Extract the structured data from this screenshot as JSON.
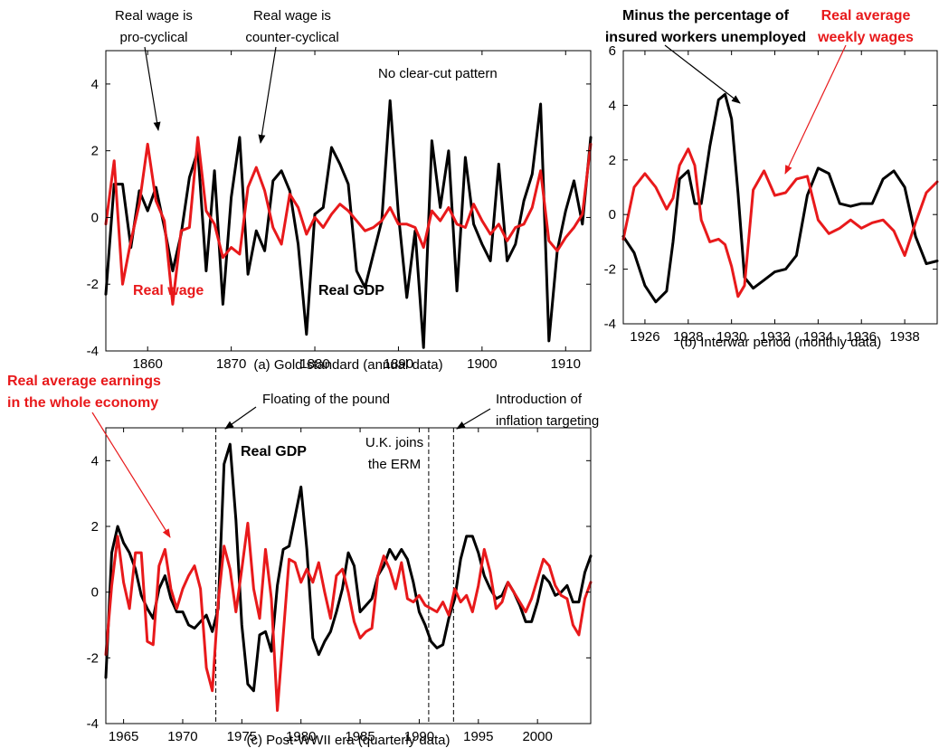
{
  "colors": {
    "real_gdp": "#000000",
    "wage": "#e8191b"
  },
  "chart_data": [
    {
      "type": "line",
      "caption": "(a) Gold standard (annual data)",
      "xlim": [
        1855,
        1913
      ],
      "ylim": [
        -4,
        5
      ],
      "xticks": [
        1860,
        1870,
        1880,
        1890,
        1900,
        1910
      ],
      "yticks": [
        -4,
        -2,
        0,
        2,
        4
      ],
      "grid": false,
      "x": [
        1855,
        1856,
        1857,
        1858,
        1859,
        1860,
        1861,
        1862,
        1863,
        1864,
        1865,
        1866,
        1867,
        1868,
        1869,
        1870,
        1871,
        1872,
        1873,
        1874,
        1875,
        1876,
        1877,
        1878,
        1879,
        1880,
        1881,
        1882,
        1883,
        1884,
        1885,
        1886,
        1887,
        1888,
        1889,
        1890,
        1891,
        1892,
        1893,
        1894,
        1895,
        1896,
        1897,
        1898,
        1899,
        1900,
        1901,
        1902,
        1903,
        1904,
        1905,
        1906,
        1907,
        1908,
        1909,
        1910,
        1911,
        1912,
        1913
      ],
      "series": [
        {
          "name": "Real GDP",
          "color": "#000000",
          "values": [
            -2.3,
            1.0,
            1.0,
            -0.9,
            0.8,
            0.2,
            0.9,
            -0.3,
            -1.6,
            -0.5,
            1.2,
            2.0,
            -1.6,
            1.4,
            -2.6,
            0.6,
            2.4,
            -1.7,
            -0.4,
            -1.0,
            1.1,
            1.4,
            0.8,
            -0.8,
            -3.5,
            0.1,
            0.3,
            2.1,
            1.6,
            1.0,
            -1.6,
            -2.1,
            -1.1,
            -0.1,
            3.5,
            0.1,
            -2.4,
            -0.4,
            -3.9,
            2.3,
            0.3,
            2.0,
            -2.2,
            1.8,
            -0.2,
            -0.8,
            -1.3,
            1.6,
            -1.3,
            -0.8,
            0.5,
            1.3,
            3.4,
            -3.7,
            -1.0,
            0.2,
            1.1,
            -0.2,
            2.4
          ]
        },
        {
          "name": "Real wage",
          "color": "#e8191b",
          "values": [
            -0.2,
            1.7,
            -2.0,
            -0.7,
            0.4,
            2.2,
            0.5,
            -0.1,
            -2.6,
            -0.4,
            -0.3,
            2.4,
            0.2,
            -0.2,
            -1.2,
            -0.9,
            -1.1,
            0.9,
            1.5,
            0.8,
            -0.3,
            -0.8,
            0.7,
            0.3,
            -0.5,
            0.0,
            -0.3,
            0.1,
            0.4,
            0.2,
            -0.1,
            -0.4,
            -0.3,
            -0.1,
            0.3,
            -0.2,
            -0.2,
            -0.3,
            -0.9,
            0.2,
            -0.1,
            0.3,
            -0.2,
            -0.3,
            0.4,
            -0.1,
            -0.5,
            -0.2,
            -0.7,
            -0.3,
            -0.2,
            0.3,
            1.4,
            -0.7,
            -1.0,
            -0.6,
            -0.3,
            0.1,
            2.2
          ]
        }
      ],
      "annotations": [
        "Real wage is",
        "pro-cyclical",
        "Real wage is",
        "counter-cyclical",
        "No clear-cut pattern",
        "Real wage",
        "Real GDP"
      ]
    },
    {
      "type": "line",
      "caption": "(b) Interwar period (monthly data)",
      "xlim": [
        1925.0,
        1939.5
      ],
      "ylim": [
        -4,
        6
      ],
      "xticks": [
        1926,
        1928,
        1930,
        1932,
        1934,
        1936,
        1938
      ],
      "yticks": [
        -4,
        -2,
        0,
        2,
        4,
        6
      ],
      "grid": false,
      "x": [
        1925.0,
        1925.5,
        1926.0,
        1926.5,
        1927.0,
        1927.3,
        1927.6,
        1928.0,
        1928.3,
        1928.6,
        1929.0,
        1929.4,
        1929.7,
        1930.0,
        1930.3,
        1930.6,
        1931.0,
        1931.5,
        1932.0,
        1932.5,
        1933.0,
        1933.5,
        1934.0,
        1934.5,
        1935.0,
        1935.5,
        1936.0,
        1936.5,
        1937.0,
        1937.5,
        1938.0,
        1938.5,
        1939.0,
        1939.5
      ],
      "series": [
        {
          "name": "Minus the percentage of insured workers unemployed",
          "color": "#000000",
          "values": [
            -0.8,
            -1.4,
            -2.6,
            -3.2,
            -2.8,
            -1.0,
            1.3,
            1.6,
            0.4,
            0.4,
            2.5,
            4.2,
            4.4,
            3.5,
            0.8,
            -2.3,
            -2.7,
            -2.4,
            -2.1,
            -2.0,
            -1.5,
            0.7,
            1.7,
            1.5,
            0.4,
            0.3,
            0.4,
            0.4,
            1.3,
            1.6,
            1.0,
            -0.8,
            -1.8,
            -1.7
          ]
        },
        {
          "name": "Real average weekly wages",
          "color": "#e8191b",
          "values": [
            -0.9,
            1.0,
            1.5,
            1.0,
            0.2,
            0.6,
            1.8,
            2.4,
            1.8,
            -0.2,
            -1.0,
            -0.9,
            -1.1,
            -1.9,
            -3.0,
            -2.6,
            0.9,
            1.6,
            0.7,
            0.8,
            1.3,
            1.4,
            -0.2,
            -0.7,
            -0.5,
            -0.2,
            -0.5,
            -0.3,
            -0.2,
            -0.6,
            -1.5,
            -0.3,
            0.8,
            1.2
          ]
        }
      ],
      "annotations": [
        "Minus the percentage of",
        "insured workers unemployed",
        "Real average",
        "weekly wages"
      ]
    },
    {
      "type": "line",
      "caption": "(c) Post-WWII era (quarterly data)",
      "xlim": [
        1963.5,
        2004.5
      ],
      "ylim": [
        -4,
        5
      ],
      "xticks": [
        1965,
        1970,
        1975,
        1980,
        1985,
        1990,
        1995,
        2000
      ],
      "yticks": [
        -4,
        -2,
        0,
        2,
        4
      ],
      "grid": false,
      "x": [
        1963.5,
        1964.0,
        1964.5,
        1965.0,
        1965.5,
        1966.0,
        1966.5,
        1967.0,
        1967.5,
        1968.0,
        1968.5,
        1969.0,
        1969.5,
        1970.0,
        1970.5,
        1971.0,
        1971.5,
        1972.0,
        1972.5,
        1973.0,
        1973.5,
        1974.0,
        1974.5,
        1975.0,
        1975.5,
        1976.0,
        1976.5,
        1977.0,
        1977.5,
        1978.0,
        1978.5,
        1979.0,
        1979.5,
        1980.0,
        1980.5,
        1981.0,
        1981.5,
        1982.0,
        1982.5,
        1983.0,
        1983.5,
        1984.0,
        1984.5,
        1985.0,
        1985.5,
        1986.0,
        1986.5,
        1987.0,
        1987.5,
        1988.0,
        1988.5,
        1989.0,
        1989.5,
        1990.0,
        1990.5,
        1991.0,
        1991.5,
        1992.0,
        1992.5,
        1993.0,
        1993.5,
        1994.0,
        1994.5,
        1995.0,
        1995.5,
        1996.0,
        1996.5,
        1997.0,
        1997.5,
        1998.0,
        1998.5,
        1999.0,
        1999.5,
        2000.0,
        2000.5,
        2001.0,
        2001.5,
        2002.0,
        2002.5,
        2003.0,
        2003.5,
        2004.0,
        2004.5
      ],
      "series": [
        {
          "name": "Real GDP",
          "color": "#000000",
          "values": [
            -2.6,
            1.2,
            2.0,
            1.5,
            1.2,
            0.7,
            -0.1,
            -0.5,
            -0.8,
            0.1,
            0.5,
            -0.2,
            -0.6,
            -0.6,
            -1.0,
            -1.1,
            -0.9,
            -0.7,
            -1.2,
            -0.5,
            3.9,
            4.5,
            2.2,
            -1.0,
            -2.8,
            -3.0,
            -1.3,
            -1.2,
            -1.8,
            0.2,
            1.3,
            1.4,
            2.3,
            3.2,
            1.3,
            -1.4,
            -1.9,
            -1.5,
            -1.2,
            -0.6,
            0.1,
            1.2,
            0.8,
            -0.6,
            -0.4,
            -0.2,
            0.5,
            0.8,
            1.3,
            1.0,
            1.3,
            1.0,
            0.3,
            -0.6,
            -1.0,
            -1.5,
            -1.7,
            -1.6,
            -0.8,
            -0.2,
            1.0,
            1.7,
            1.7,
            1.2,
            0.5,
            0.1,
            -0.2,
            -0.1,
            0.3,
            0.0,
            -0.4,
            -0.9,
            -0.9,
            -0.3,
            0.5,
            0.3,
            -0.1,
            0.0,
            0.2,
            -0.3,
            -0.3,
            0.6,
            1.1
          ]
        },
        {
          "name": "Real average earnings in the whole economy",
          "color": "#e8191b",
          "values": [
            -1.9,
            0.2,
            1.7,
            0.3,
            -0.5,
            1.2,
            1.2,
            -1.5,
            -1.6,
            0.8,
            1.3,
            0.1,
            -0.5,
            0.1,
            0.5,
            0.8,
            0.1,
            -2.3,
            -3.0,
            -0.3,
            1.4,
            0.7,
            -0.6,
            0.7,
            2.1,
            0.1,
            -0.8,
            1.3,
            -0.2,
            -3.6,
            -1.3,
            1.0,
            0.9,
            0.3,
            0.7,
            0.3,
            0.9,
            0.0,
            -0.8,
            0.5,
            0.7,
            0.0,
            -0.9,
            -1.4,
            -1.2,
            -1.1,
            0.5,
            1.1,
            0.7,
            0.1,
            0.9,
            -0.2,
            -0.3,
            -0.1,
            -0.4,
            -0.5,
            -0.6,
            -0.3,
            -0.7,
            0.1,
            -0.3,
            -0.1,
            -0.6,
            0.2,
            1.3,
            0.6,
            -0.5,
            -0.3,
            0.3,
            0.0,
            -0.3,
            -0.6,
            -0.2,
            0.4,
            1.0,
            0.8,
            0.2,
            -0.1,
            -0.2,
            -1.0,
            -1.3,
            -0.2,
            0.3
          ]
        }
      ],
      "vlines": [
        1972.8,
        1990.8,
        1992.9
      ],
      "annotations": [
        "Floating of the pound",
        "Introduction of",
        "inflation targeting",
        "U.K. joins",
        "the ERM",
        "Real average earnings",
        "in the whole economy",
        "Real GDP"
      ]
    }
  ]
}
